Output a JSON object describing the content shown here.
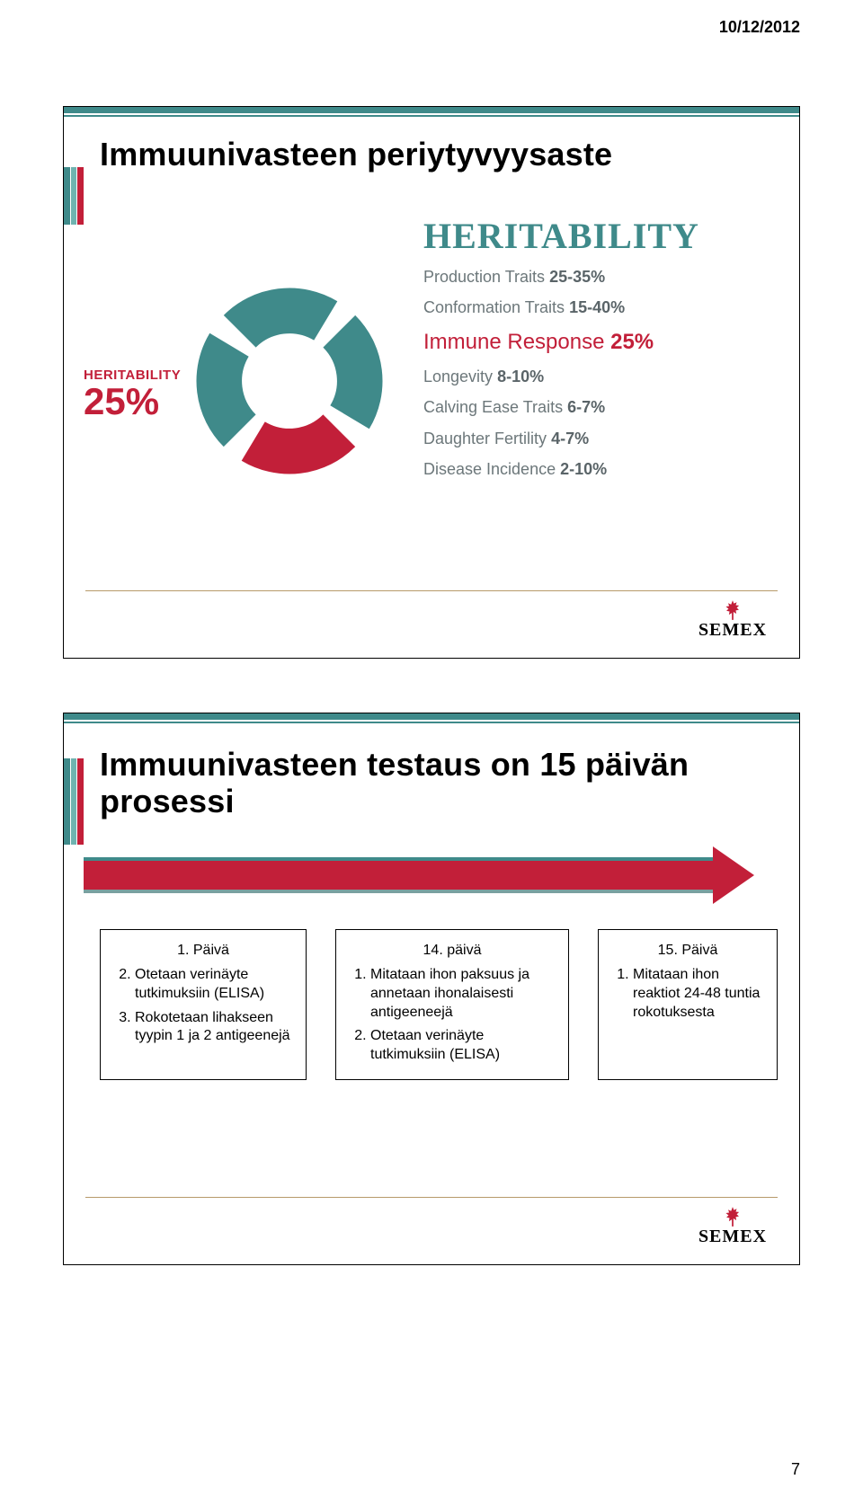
{
  "header_date": "10/12/2012",
  "page_number": "7",
  "slide1": {
    "title": "Immuunivasteen periytyvyysaste",
    "donut": {
      "label_small": "HERITABILITY",
      "label_pct": "25%",
      "colors": {
        "teal": "#3f8a8a",
        "red": "#c21f39",
        "gap": 14
      },
      "segments_deg": [
        76,
        76,
        76,
        76
      ]
    },
    "heritability_title": "HERITABILITY",
    "rows": [
      {
        "label": "Production Traits",
        "value": "25-35%",
        "emphasis": false
      },
      {
        "label": "Conformation Traits",
        "value": "15-40%",
        "emphasis": false
      },
      {
        "label": "Immune Response",
        "value": "25%",
        "emphasis": true
      },
      {
        "label": "Longevity",
        "value": "8-10%",
        "emphasis": false
      },
      {
        "label": "Calving Ease Traits",
        "value": "6-7%",
        "emphasis": false
      },
      {
        "label": "Daughter Fertility",
        "value": "4-7%",
        "emphasis": false
      },
      {
        "label": "Disease Incidence",
        "value": "2-10%",
        "emphasis": false
      }
    ]
  },
  "slide2": {
    "title": "Immuunivasteen testaus on 15 päivän prosessi",
    "boxes": [
      {
        "head": "1. Päivä",
        "items": [
          "Otetaan verinäyte tutkimuksiin (ELISA)",
          "Rokotetaan lihakseen tyypin 1 ja 2 antigeenejä"
        ],
        "start_index": 2
      },
      {
        "head": "14. päivä",
        "items": [
          "Mitataan ihon paksuus ja annetaan ihonalaisesti antigeeneejä",
          "Otetaan verinäyte tutkimuksiin (ELISA)"
        ],
        "start_index": 1
      },
      {
        "head": "15. Päivä",
        "items": [
          "Mitataan ihon reaktiot 24-48 tuntia rokotuksesta"
        ],
        "start_index": 1
      }
    ]
  },
  "logo_text": "SEMEX",
  "colors": {
    "teal": "#3f8a8a",
    "teal_light": "#6fb3b0",
    "red": "#c21f39",
    "grey_text": "#6c777a"
  }
}
